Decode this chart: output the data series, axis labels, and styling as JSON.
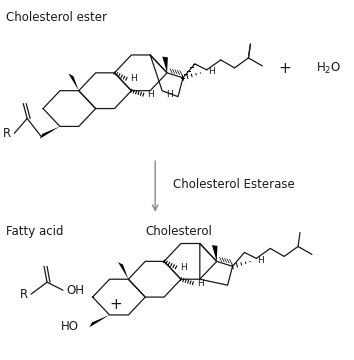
{
  "bg_color": "#ffffff",
  "text_color": "#1a1a1a",
  "line_color": "#1a1a1a",
  "gray_color": "#888888",
  "labels": {
    "cholesterol_ester": "Cholesterol ester",
    "fatty_acid": "Fatty acid",
    "cholesterol": "Cholesterol",
    "enzyme": "Cholesterol Esterase",
    "plus_top": "+",
    "h2o": "H$_2$O",
    "plus_bottom": "+"
  },
  "font_size_labels": 8.5,
  "font_size_H": 6.5
}
